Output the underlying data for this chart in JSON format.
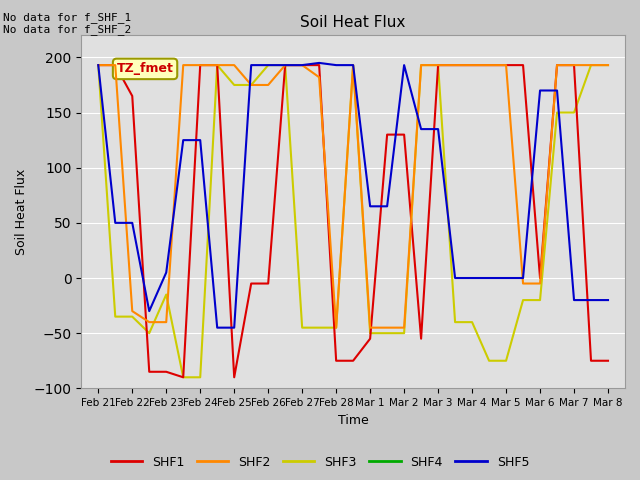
{
  "title": "Soil Heat Flux",
  "ylabel": "Soil Heat Flux",
  "xlabel": "Time",
  "ylim": [
    -100,
    220
  ],
  "yticks": [
    -100,
    -50,
    0,
    50,
    100,
    150,
    200
  ],
  "annotation_text": "No data for f_SHF_1\nNo data for f_SHF_2",
  "box_label": "TZ_fmet",
  "x_labels": [
    "Feb 21",
    "Feb 22",
    "Feb 23",
    "Feb 24",
    "Feb 25",
    "Feb 26",
    "Feb 27",
    "Feb 28",
    "Mar 1",
    "Mar 2",
    "Mar 3",
    "Mar 4",
    "Mar 5",
    "Mar 6",
    "Mar 7",
    "Mar 8"
  ],
  "shf1_x": [
    0,
    0.5,
    1,
    1.5,
    2,
    2.5,
    3,
    3.5,
    4,
    4.5,
    5,
    5.5,
    6,
    6.5,
    7,
    7.5,
    8,
    8.5,
    9,
    9.5,
    10,
    10.5,
    11,
    11.5,
    12,
    12.5,
    13,
    13.5,
    14,
    14.5,
    15
  ],
  "shf1_y": [
    193,
    193,
    165,
    -85,
    -85,
    -90,
    193,
    193,
    -90,
    -5,
    -5,
    193,
    193,
    193,
    -75,
    -75,
    -55,
    130,
    130,
    -55,
    193,
    193,
    193,
    193,
    193,
    193,
    0,
    193,
    193,
    -75,
    -75
  ],
  "shf2_x": [
    0,
    0.5,
    1,
    1.5,
    2,
    2.5,
    3,
    3.5,
    4,
    4.5,
    5,
    5.5,
    6,
    6.5,
    7,
    7.5,
    8,
    8.5,
    9,
    9.5,
    10,
    10.5,
    11,
    11.5,
    12,
    12.5,
    13,
    13.5,
    14,
    14.5,
    15
  ],
  "shf2_y": [
    193,
    193,
    -30,
    -40,
    -40,
    193,
    193,
    193,
    193,
    175,
    175,
    193,
    193,
    182,
    -45,
    193,
    -45,
    -45,
    -45,
    193,
    193,
    193,
    193,
    193,
    193,
    -5,
    -5,
    193,
    193,
    193,
    193
  ],
  "shf3_x": [
    0,
    0.5,
    1,
    1.5,
    2,
    2.5,
    3,
    3.5,
    4,
    4.5,
    5,
    5.5,
    6,
    6.5,
    7,
    7.5,
    8,
    8.5,
    9,
    9.5,
    10,
    10.5,
    11,
    11.5,
    12,
    12.5,
    13,
    13.5,
    14,
    14.5,
    15
  ],
  "shf3_y": [
    193,
    -35,
    -35,
    -50,
    -15,
    -90,
    -90,
    193,
    175,
    175,
    193,
    193,
    -45,
    -45,
    -45,
    193,
    -50,
    -50,
    -50,
    193,
    193,
    -40,
    -40,
    -75,
    -75,
    -20,
    -20,
    150,
    150,
    193,
    193
  ],
  "shf4_x": [],
  "shf4_y": [],
  "shf5_x": [
    0,
    0.5,
    1,
    1.5,
    2,
    2.5,
    3,
    3.5,
    4,
    4.5,
    5,
    5.5,
    6,
    6.5,
    7,
    7.5,
    8,
    8.5,
    9,
    9.5,
    10,
    10.5,
    11,
    11.5,
    12,
    12.5,
    13,
    13.5,
    14,
    14.5,
    15
  ],
  "shf5_y": [
    193,
    50,
    50,
    -30,
    5,
    125,
    125,
    -45,
    -45,
    193,
    193,
    193,
    193,
    195,
    193,
    193,
    65,
    65,
    193,
    135,
    135,
    0,
    0,
    0,
    0,
    0,
    170,
    170,
    -20,
    -20,
    -20
  ],
  "colors": {
    "SHF1": "#dd0000",
    "SHF2": "#ff8800",
    "SHF3": "#cccc00",
    "SHF4": "#00aa00",
    "SHF5": "#0000cc"
  },
  "bg_color": "#e0e0e0",
  "grid_color": "#ffffff",
  "linewidth": 1.5,
  "fig_facecolor": "#c8c8c8"
}
